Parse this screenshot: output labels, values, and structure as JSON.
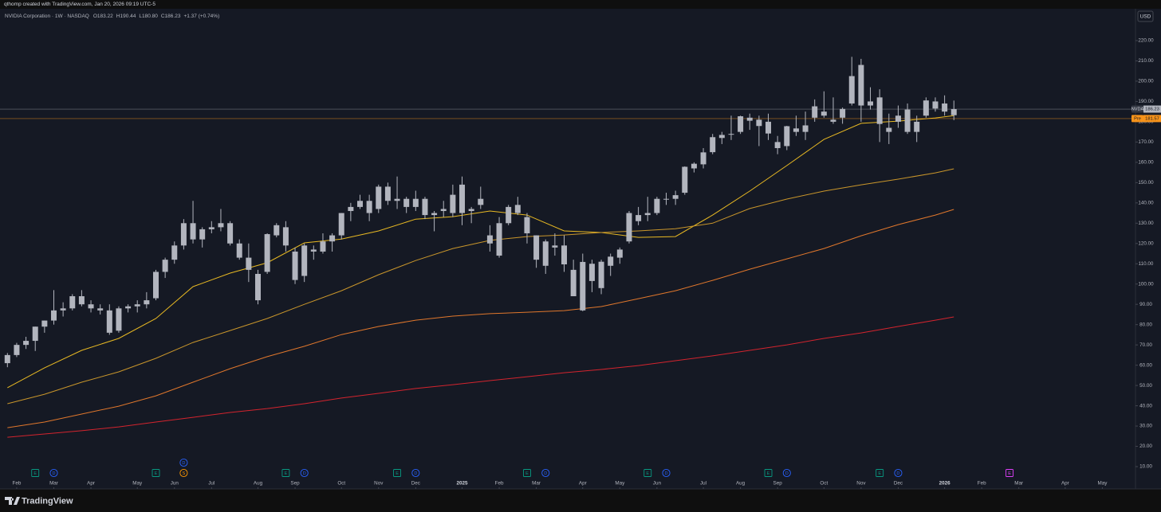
{
  "top_note": "qthomp created with TradingView.com, Jan 20, 2026 09:19 UTC-5",
  "header": {
    "symbol": "NVIDIA Corporation · 1W · NASDAQ",
    "open": "O183.22",
    "high": "H190.44",
    "low": "L180.80",
    "close": "C186.23",
    "change": "+1.37 (+0.74%)"
  },
  "currency": "USD",
  "brand": "TradingView",
  "chart_data": {
    "type": "candlestick",
    "color": "#b2b5be",
    "grid": false,
    "ylim": [
      -0.2,
      235.3
    ],
    "yticks": [
      {
        "value": 10,
        "label": "10.00"
      },
      {
        "value": 20,
        "label": "20.00"
      },
      {
        "value": 30,
        "label": "30.00"
      },
      {
        "value": 40,
        "label": "40.00"
      },
      {
        "value": 50,
        "label": "50.00"
      },
      {
        "value": 60,
        "label": "60.00"
      },
      {
        "value": 70,
        "label": "70.00"
      },
      {
        "value": 80,
        "label": "80.00"
      },
      {
        "value": 90,
        "label": "90.00"
      },
      {
        "value": 100,
        "label": "100.00"
      },
      {
        "value": 110,
        "label": "110.00"
      },
      {
        "value": 120,
        "label": "120.00"
      },
      {
        "value": 130,
        "label": "130.00"
      },
      {
        "value": 140,
        "label": "140.00"
      },
      {
        "value": 150,
        "label": "150.00"
      },
      {
        "value": 160,
        "label": "160.00"
      },
      {
        "value": 170,
        "label": "170.00"
      },
      {
        "value": 180,
        "label": "180.00"
      },
      {
        "value": 190,
        "label": "190.00"
      },
      {
        "value": 200,
        "label": "200.00"
      },
      {
        "value": 210,
        "label": "210.00"
      },
      {
        "value": 220,
        "label": "220.00"
      }
    ],
    "xlim": [
      -0.8,
      121.4
    ],
    "xticks": [
      {
        "value": 1,
        "label": "Feb"
      },
      {
        "value": 5,
        "label": "Mar"
      },
      {
        "value": 9,
        "label": "Apr"
      },
      {
        "value": 14,
        "label": "May"
      },
      {
        "value": 18,
        "label": "Jun"
      },
      {
        "value": 22,
        "label": "Jul"
      },
      {
        "value": 27,
        "label": "Aug"
      },
      {
        "value": 31,
        "label": "Sep"
      },
      {
        "value": 36,
        "label": "Oct"
      },
      {
        "value": 40,
        "label": "Nov"
      },
      {
        "value": 44,
        "label": "Dec"
      },
      {
        "value": 49,
        "label": "2025"
      },
      {
        "value": 53,
        "label": "Feb"
      },
      {
        "value": 57,
        "label": "Mar"
      },
      {
        "value": 62,
        "label": "Apr"
      },
      {
        "value": 66,
        "label": "May"
      },
      {
        "value": 70,
        "label": "Jun"
      },
      {
        "value": 75,
        "label": "Jul"
      },
      {
        "value": 79,
        "label": "Aug"
      },
      {
        "value": 83,
        "label": "Sep"
      },
      {
        "value": 88,
        "label": "Oct"
      },
      {
        "value": 92,
        "label": "Nov"
      },
      {
        "value": 96,
        "label": "Dec"
      },
      {
        "value": 101,
        "label": "2026"
      },
      {
        "value": 105,
        "label": "Feb"
      },
      {
        "value": 109,
        "label": "Mar"
      },
      {
        "value": 114,
        "label": "Apr"
      },
      {
        "value": 118,
        "label": "May"
      }
    ],
    "candles": {
      "x": [
        0,
        1,
        2,
        3,
        4,
        5,
        6,
        7,
        8,
        9,
        10,
        11,
        12,
        13,
        14,
        15,
        16,
        17,
        18,
        19,
        20,
        21,
        22,
        23,
        24,
        25,
        26,
        27,
        28,
        29,
        30,
        31,
        32,
        33,
        34,
        35,
        36,
        37,
        38,
        39,
        40,
        41,
        42,
        43,
        44,
        45,
        46,
        47,
        48,
        49,
        50,
        51,
        52,
        53,
        54,
        55,
        56,
        57,
        58,
        59,
        60,
        61,
        62,
        63,
        64,
        65,
        66,
        67,
        68,
        69,
        70,
        71,
        72,
        73,
        74,
        75,
        76,
        77,
        78,
        79,
        80,
        81,
        82,
        83,
        84,
        85,
        86,
        87,
        88,
        89,
        90,
        91,
        92,
        93,
        94,
        95,
        96,
        97,
        98,
        99,
        100,
        101,
        102
      ],
      "open": [
        61,
        65,
        70,
        72,
        79,
        82,
        87,
        88,
        94,
        90,
        88,
        87,
        77,
        88,
        89,
        90,
        93,
        106,
        112,
        119,
        130,
        122,
        127,
        128,
        130,
        120,
        113,
        92,
        106,
        124,
        128,
        116,
        104,
        117,
        116,
        121,
        124,
        136,
        138,
        141,
        137,
        148,
        141,
        142,
        138,
        142,
        134,
        136,
        135,
        149,
        136,
        139,
        124,
        114,
        130,
        139,
        133,
        124,
        109,
        119,
        119,
        107,
        87,
        110,
        98,
        109,
        113,
        121,
        134,
        134,
        135,
        142,
        142,
        145,
        157,
        159,
        165,
        172,
        174,
        175,
        182,
        181,
        180,
        170,
        168,
        175,
        175,
        182,
        185,
        180,
        182,
        189,
        208,
        188,
        192,
        175,
        180,
        186,
        175,
        183,
        190,
        189,
        183.22
      ],
      "high": [
        66,
        71,
        74,
        79,
        82,
        97,
        91,
        95,
        97,
        92,
        90,
        90,
        89,
        90,
        92,
        96,
        107,
        113,
        121,
        132,
        141,
        128,
        131,
        137,
        131,
        122,
        120,
        107,
        125,
        130,
        131,
        118,
        120,
        119,
        125,
        125,
        135,
        140,
        144,
        144,
        149,
        150,
        153,
        143,
        146,
        143,
        136,
        141,
        149,
        153,
        138,
        148,
        129,
        133,
        139,
        143,
        135,
        124,
        122,
        125,
        124,
        112,
        115,
        112,
        112,
        115,
        118,
        136,
        138,
        143,
        143,
        145,
        146,
        158,
        160,
        167,
        174,
        175,
        183,
        183,
        184,
        183,
        184,
        173,
        178,
        183,
        185,
        191,
        195,
        192,
        187,
        212,
        211,
        197,
        196,
        184,
        188,
        189,
        183,
        192,
        192,
        193,
        190.44
      ],
      "low": [
        59,
        64,
        68,
        67,
        76,
        80,
        84,
        87,
        89,
        86,
        85,
        75,
        76,
        86,
        86,
        88,
        92,
        103,
        110,
        117,
        120,
        118,
        125,
        126,
        119,
        112,
        101,
        90,
        105,
        123,
        116,
        100,
        101,
        112,
        115,
        116,
        122,
        131,
        137,
        131,
        135,
        139,
        137,
        135,
        136,
        132,
        126,
        133,
        133,
        129,
        130,
        137,
        116,
        113,
        129,
        134,
        120,
        108,
        105,
        114,
        106,
        94,
        86.6,
        96,
        95,
        104,
        110,
        120,
        129,
        131,
        134,
        139,
        139,
        144,
        155,
        157,
        164,
        169,
        171,
        174,
        176,
        168,
        171,
        164,
        166,
        173,
        171,
        180,
        182,
        179,
        179,
        188,
        180,
        186,
        170,
        169,
        177,
        174,
        170,
        182,
        185,
        183,
        180.8
      ],
      "close": [
        65,
        70,
        72,
        79,
        82,
        87,
        88,
        94,
        90,
        88,
        87,
        76,
        88,
        89,
        90,
        92,
        106,
        112,
        119,
        130,
        122,
        127,
        128,
        130,
        120,
        113,
        107,
        105,
        124.6,
        129,
        119,
        102,
        119,
        116,
        121,
        124,
        135,
        138,
        141,
        135,
        148,
        141,
        142,
        138,
        142,
        134,
        135,
        137,
        144,
        135,
        137,
        142,
        120,
        130,
        138,
        135,
        125,
        112,
        121,
        118,
        109.7,
        94,
        110.9,
        101.5,
        111,
        113.5,
        117,
        135,
        131,
        135,
        142,
        141.9,
        143.8,
        157.8,
        159.3,
        164.9,
        172.4,
        173.5,
        173.7,
        182.7,
        180.5,
        177.9,
        174.2,
        167,
        177.8,
        176.7,
        178.2,
        187.6,
        183,
        181,
        186.3,
        202.5,
        188,
        190,
        178.9,
        177,
        183,
        175,
        180,
        190.5,
        186.5,
        185,
        186.23
      ]
    },
    "lines": [
      {
        "color": "#e8b923",
        "x": [
          0,
          4,
          8,
          12,
          16,
          20,
          24,
          28,
          32,
          36,
          40,
          44,
          48,
          52,
          56,
          60,
          64,
          68,
          72,
          76,
          80,
          84,
          88,
          92,
          96,
          100,
          102
        ],
        "values": [
          48.9,
          58.7,
          67.3,
          73.2,
          83,
          98.7,
          105.4,
          110.5,
          120.3,
          122.2,
          126.2,
          132,
          133.2,
          136,
          134,
          126.2,
          125.4,
          123,
          123.4,
          134,
          145.8,
          158.4,
          171.3,
          179.2,
          180.3,
          181.9,
          183
        ]
      },
      {
        "color": "#c9962b",
        "x": [
          0,
          4,
          8,
          12,
          16,
          20,
          24,
          28,
          32,
          36,
          40,
          44,
          48,
          52,
          56,
          60,
          64,
          68,
          72,
          76,
          80,
          84,
          88,
          92,
          96,
          100,
          102
        ],
        "values": [
          41,
          45.7,
          51.6,
          56.7,
          63.4,
          71.2,
          77.1,
          83,
          90,
          96.7,
          104.6,
          111.6,
          117.5,
          121.5,
          123.4,
          124.2,
          125.4,
          126.2,
          127.3,
          130,
          137.2,
          141.9,
          145.8,
          148.9,
          151.7,
          154.8,
          156.8
        ]
      },
      {
        "color": "#e0772c",
        "x": [
          0,
          4,
          8,
          12,
          16,
          20,
          24,
          28,
          32,
          36,
          40,
          44,
          48,
          52,
          56,
          60,
          64,
          68,
          72,
          76,
          80,
          84,
          88,
          92,
          96,
          100,
          102
        ],
        "values": [
          29.2,
          32,
          35.9,
          39.8,
          44.9,
          51.6,
          58.3,
          64.2,
          69.3,
          75.1,
          79.1,
          82.2,
          84.2,
          85.4,
          86.1,
          86.9,
          88.9,
          92.8,
          96.7,
          101.8,
          107.3,
          112.4,
          117.5,
          123.8,
          129.3,
          134,
          136.8
        ]
      },
      {
        "color": "#d3242e",
        "x": [
          0,
          4,
          8,
          12,
          16,
          20,
          24,
          28,
          32,
          36,
          40,
          44,
          48,
          52,
          56,
          60,
          64,
          68,
          72,
          76,
          80,
          84,
          88,
          92,
          96,
          100,
          102
        ],
        "values": [
          24.5,
          26.1,
          27.7,
          29.6,
          32,
          34.3,
          36.7,
          38.6,
          41,
          43.8,
          46.1,
          48.5,
          50.4,
          52.4,
          54.3,
          56.3,
          57.9,
          59.8,
          62.2,
          64.6,
          67.3,
          70,
          73.2,
          75.9,
          79.1,
          82.2,
          83.8
        ]
      }
    ],
    "price_lines": [
      {
        "name": "NVDA",
        "value": 186.23,
        "color": "#9598a1"
      },
      {
        "name": "Pre",
        "value": 181.57,
        "color": "#f7931a"
      }
    ],
    "events": [
      {
        "label": "E",
        "x": 3,
        "color": "#089981",
        "shape": "square"
      },
      {
        "label": "D",
        "x": 5,
        "color": "#2962ff",
        "shape": "circle"
      },
      {
        "label": "E",
        "x": 16,
        "color": "#089981",
        "shape": "square"
      },
      {
        "label": "S",
        "x": 19,
        "color": "#ff9800",
        "shape": "circle"
      },
      {
        "label": "D",
        "x": 19,
        "color": "#2962ff",
        "shape": "circle"
      },
      {
        "label": "E",
        "x": 30,
        "color": "#089981",
        "shape": "square"
      },
      {
        "label": "D",
        "x": 32,
        "color": "#2962ff",
        "shape": "circle"
      },
      {
        "label": "E",
        "x": 42,
        "color": "#089981",
        "shape": "square"
      },
      {
        "label": "D",
        "x": 44,
        "color": "#2962ff",
        "shape": "circle"
      },
      {
        "label": "E",
        "x": 56,
        "color": "#089981",
        "shape": "square"
      },
      {
        "label": "D",
        "x": 58,
        "color": "#2962ff",
        "shape": "circle"
      },
      {
        "label": "E",
        "x": 69,
        "color": "#089981",
        "shape": "square"
      },
      {
        "label": "D",
        "x": 71,
        "color": "#2962ff",
        "shape": "circle"
      },
      {
        "label": "E",
        "x": 82,
        "color": "#089981",
        "shape": "square"
      },
      {
        "label": "D",
        "x": 84,
        "color": "#2962ff",
        "shape": "circle"
      },
      {
        "label": "E",
        "x": 94,
        "color": "#089981",
        "shape": "square"
      },
      {
        "label": "D",
        "x": 96,
        "color": "#2962ff",
        "shape": "circle"
      },
      {
        "label": "E",
        "x": 108,
        "color": "#e040fb",
        "shape": "square"
      }
    ]
  }
}
